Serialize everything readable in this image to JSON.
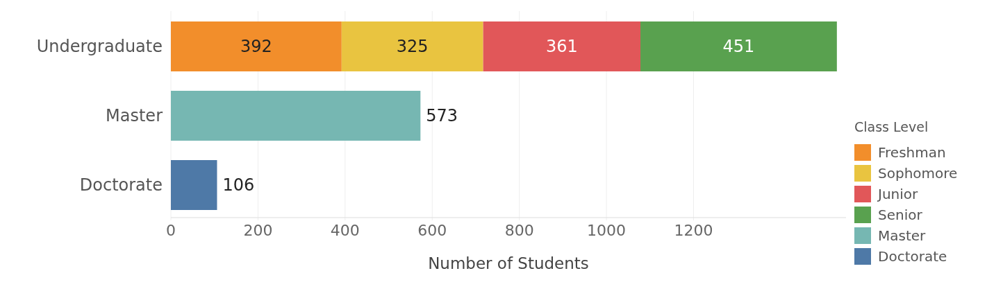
{
  "chart_data": {
    "type": "bar",
    "orientation": "horizontal",
    "stacked": true,
    "categories": [
      "Undergraduate",
      "Master",
      "Doctorate"
    ],
    "series": [
      {
        "name": "Freshman",
        "color": "#f28e2b",
        "values": [
          392,
          null,
          null
        ]
      },
      {
        "name": "Sophomore",
        "color": "#e9c440",
        "values": [
          325,
          null,
          null
        ]
      },
      {
        "name": "Junior",
        "color": "#e15759",
        "values": [
          361,
          null,
          null
        ]
      },
      {
        "name": "Senior",
        "color": "#59a14f",
        "values": [
          451,
          null,
          null
        ]
      },
      {
        "name": "Master",
        "color": "#76b7b2",
        "values": [
          null,
          573,
          null
        ]
      },
      {
        "name": "Doctorate",
        "color": "#4e79a7",
        "values": [
          null,
          null,
          106
        ]
      }
    ],
    "xlim": [
      0,
      1550
    ],
    "xticks": [
      0,
      200,
      400,
      600,
      800,
      1000,
      1200
    ],
    "xlabel": "Number of Students",
    "legend_title": "Class Level",
    "legend": "bottom right",
    "grid": "x",
    "data_labels": true
  }
}
